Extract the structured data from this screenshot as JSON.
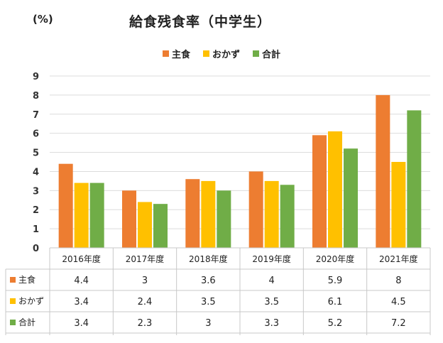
{
  "chart_data": {
    "type": "bar",
    "title": "給食残食率（中学生）",
    "unit": "(%)",
    "categories": [
      "2016年度",
      "2017年度",
      "2018年度",
      "2019年度",
      "2020年度",
      "2021年度"
    ],
    "ylim": [
      0,
      9
    ],
    "yticks": [
      "0",
      "1",
      "2",
      "3",
      "4",
      "5",
      "6",
      "7",
      "8",
      "9"
    ],
    "grid": true,
    "legend_position": "top-center",
    "series": [
      {
        "name": "主食",
        "color": "#ED7D31",
        "values": [
          4.4,
          3,
          3.6,
          4,
          5.9,
          8
        ],
        "labels": [
          "4.4",
          "3",
          "3.6",
          "4",
          "5.9",
          "8"
        ]
      },
      {
        "name": "おかず",
        "color": "#FFC000",
        "values": [
          3.4,
          2.4,
          3.5,
          3.5,
          6.1,
          4.5
        ],
        "labels": [
          "3.4",
          "2.4",
          "3.5",
          "3.5",
          "6.1",
          "4.5"
        ]
      },
      {
        "name": "合計",
        "color": "#70AD47",
        "values": [
          3.4,
          2.3,
          3,
          3.3,
          5.2,
          7.2
        ],
        "labels": [
          "3.4",
          "2.3",
          "3",
          "3.3",
          "5.2",
          "7.2"
        ]
      }
    ]
  }
}
